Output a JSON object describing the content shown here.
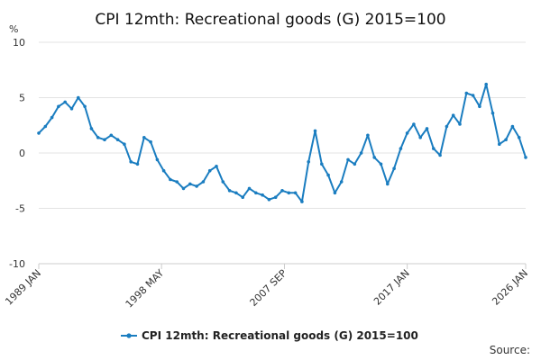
{
  "chart_data": {
    "type": "line",
    "title": "CPI 12mth: Recreational goods (G) 2015=100",
    "ylabel": "%",
    "xlabel": "",
    "ylim": [
      -10,
      10
    ],
    "yticks": [
      -10,
      -5,
      0,
      5,
      10
    ],
    "x_range_years": [
      1989.0,
      2026.0
    ],
    "xticks": [
      {
        "label": "1989 JAN",
        "t": 1989.0
      },
      {
        "label": "1998 MAY",
        "t": 1998.33
      },
      {
        "label": "2007 SEP",
        "t": 2007.67
      },
      {
        "label": "2017 JAN",
        "t": 2017.0
      },
      {
        "label": "2026 JAN",
        "t": 2026.0
      }
    ],
    "color": "#1a7dc0",
    "series": [
      {
        "name": "CPI 12mth: Recreational goods (G) 2015=100",
        "x": [
          1989.0,
          1989.5,
          1990.0,
          1990.5,
          1991.0,
          1991.5,
          1992.0,
          1992.5,
          1993.0,
          1993.5,
          1994.0,
          1994.5,
          1995.0,
          1995.5,
          1996.0,
          1996.5,
          1997.0,
          1997.5,
          1998.0,
          1998.5,
          1999.0,
          1999.5,
          2000.0,
          2000.5,
          2001.0,
          2001.5,
          2002.0,
          2002.5,
          2003.0,
          2003.5,
          2004.0,
          2004.5,
          2005.0,
          2005.5,
          2006.0,
          2006.5,
          2007.0,
          2007.5,
          2008.0,
          2008.5,
          2009.0,
          2009.5,
          2010.0,
          2010.5,
          2011.0,
          2011.5,
          2012.0,
          2012.5,
          2013.0,
          2013.5,
          2014.0,
          2014.5,
          2015.0,
          2015.5,
          2016.0,
          2016.5,
          2017.0,
          2017.5,
          2018.0,
          2018.5,
          2019.0,
          2019.5,
          2020.0,
          2020.5,
          2021.0,
          2021.5,
          2022.0,
          2022.5,
          2023.0,
          2023.5,
          2024.0,
          2024.5,
          2025.0,
          2025.5,
          2026.0
        ],
        "values": [
          1.8,
          2.4,
          3.2,
          4.2,
          4.6,
          4.0,
          5.0,
          4.2,
          2.2,
          1.4,
          1.2,
          1.6,
          1.2,
          0.8,
          -0.8,
          -1.0,
          1.4,
          1.0,
          -0.6,
          -1.6,
          -2.4,
          -2.6,
          -3.2,
          -2.8,
          -3.0,
          -2.6,
          -1.6,
          -1.2,
          -2.6,
          -3.4,
          -3.6,
          -4.0,
          -3.2,
          -3.6,
          -3.8,
          -4.2,
          -4.0,
          -3.4,
          -3.6,
          -3.6,
          -4.4,
          -0.8,
          2.0,
          -1.0,
          -2.0,
          -3.6,
          -2.6,
          -0.6,
          -1.0,
          0.0,
          1.6,
          -0.4,
          -1.0,
          -2.8,
          -1.4,
          0.4,
          1.8,
          2.6,
          1.4,
          2.2,
          0.4,
          -0.2,
          2.4,
          3.4,
          2.6,
          5.4,
          5.2,
          4.2,
          6.2,
          3.6,
          0.8,
          1.2,
          2.4,
          1.4,
          -0.4
        ]
      }
    ]
  },
  "legend": {
    "label": "CPI 12mth: Recreational goods (G) 2015=100"
  },
  "footer": {
    "source_label": "Source:"
  }
}
